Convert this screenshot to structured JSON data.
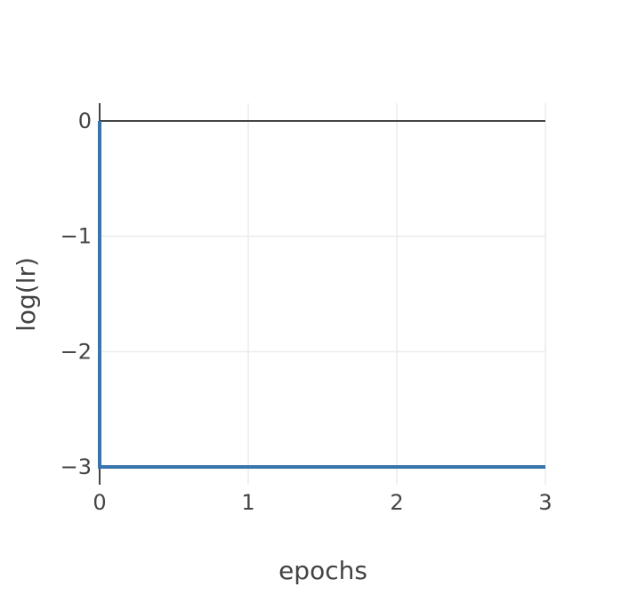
{
  "chart_data": {
    "type": "line",
    "title": "",
    "xlabel": "epochs",
    "ylabel": "log(lr)",
    "xlim": [
      0,
      3
    ],
    "ylim": [
      -3,
      0
    ],
    "x_ticks": [
      0,
      1,
      2,
      3
    ],
    "y_ticks": [
      0,
      -1,
      -2,
      -3
    ],
    "x_tick_labels": [
      "0",
      "1",
      "2",
      "3"
    ],
    "y_tick_labels": [
      "0",
      "−1",
      "−2",
      "−3"
    ],
    "grid": true,
    "series": [
      {
        "x": [
          0,
          0,
          3
        ],
        "y": [
          0,
          -3,
          -3
        ],
        "color": "#3a74ad"
      }
    ],
    "colors": {
      "series": "#3a74ad",
      "grid": "#ebebeb",
      "axis": "#444444",
      "zeroline": "#444444"
    }
  }
}
